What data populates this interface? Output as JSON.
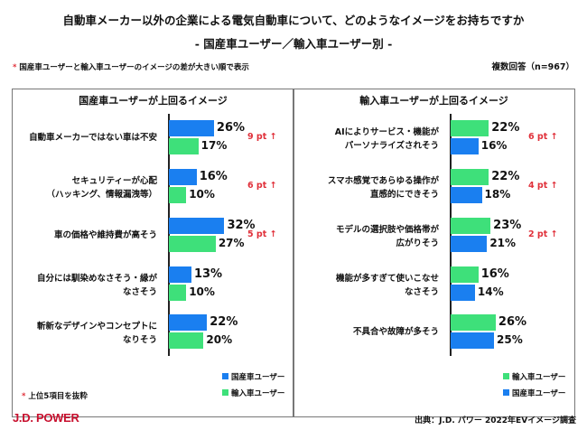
{
  "title": "自動車メーカー以外の企業による電気自動車について、どのようなイメージをお持ちですか",
  "subtitle": "- 国産車ユーザー／輸入車ユーザー別 -",
  "note_star": "*",
  "note": "国産車ユーザーと輸入車ユーザーのイメージの差が大きい順で表示",
  "sample": "複数回答（n=967）",
  "footnote": "上位5項目を抜粋",
  "logo": "J.D. POWER",
  "source": "出典：J.D. パワー 2022年EVイメージ調査",
  "colors": {
    "domestic": "#1a7ff0",
    "import": "#3ee07a",
    "diff": "#e0303a"
  },
  "chart_data": [
    {
      "type": "bar",
      "orientation": "horizontal",
      "title": "国産車ユーザーが上回るイメージ",
      "categories": [
        "自動車メーカーではない車は不安",
        "セキュリティーが心配\n（ハッキング、情報漏洩等）",
        "車の価格や維持費が高そう",
        "自分には馴染めなさそう・縁が\nなさそう",
        "斬新なデザインやコンセプトに\nなりそう"
      ],
      "series": [
        {
          "name": "国産車ユーザー",
          "color": "#1a7ff0",
          "values": [
            26,
            16,
            32,
            13,
            22
          ]
        },
        {
          "name": "輸入車ユーザー",
          "color": "#3ee07a",
          "values": [
            17,
            10,
            27,
            10,
            20
          ]
        }
      ],
      "value_labels": [
        [
          "26%",
          "16%",
          "32%",
          "13%",
          "22%"
        ],
        [
          "17%",
          "10%",
          "27%",
          "10%",
          "20%"
        ]
      ],
      "diffs": [
        "9 pt ↑",
        "6 pt ↑",
        "5 pt ↑",
        "",
        ""
      ],
      "legend": "bottom-right"
    },
    {
      "type": "bar",
      "orientation": "horizontal",
      "title": "輸入車ユーザーが上回るイメージ",
      "categories": [
        "AIによりサービス・機能が\nパーソナライズされそう",
        "スマホ感覚であらゆる操作が\n直感的にできそう",
        "モデルの選択肢や価格帯が\n広がりそう",
        "機能が多すぎて使いこなせ\nなさそう",
        "不具合や故障が多そう"
      ],
      "series": [
        {
          "name": "輸入車ユーザー",
          "color": "#3ee07a",
          "values": [
            22,
            22,
            23,
            16,
            26
          ]
        },
        {
          "name": "国産車ユーザー",
          "color": "#1a7ff0",
          "values": [
            16,
            18,
            21,
            14,
            25
          ]
        }
      ],
      "value_labels": [
        [
          "22%",
          "22%",
          "23%",
          "16%",
          "26%"
        ],
        [
          "16%",
          "18%",
          "21%",
          "14%",
          "25%"
        ]
      ],
      "diffs": [
        "6 pt ↑",
        "4 pt ↑",
        "2 pt ↑",
        "",
        ""
      ],
      "legend": "bottom-right"
    }
  ]
}
